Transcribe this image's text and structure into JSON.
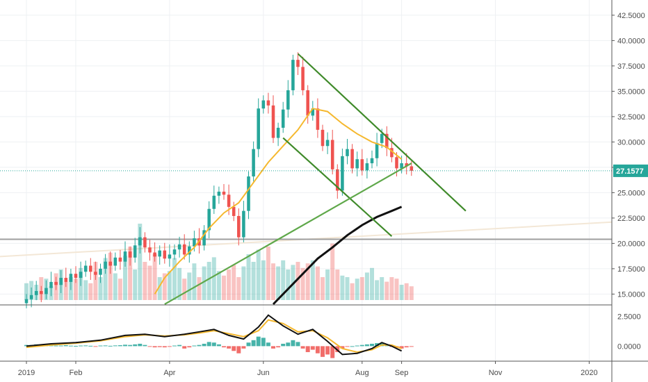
{
  "chart_data": {
    "type": "candlestick",
    "title": "",
    "grid": true,
    "price_axis": {
      "ylim": [
        14.0,
        44.0
      ],
      "ticks": [
        15.0,
        17.5,
        20.0,
        22.5,
        25.0,
        27.5,
        30.0,
        32.5,
        35.0,
        37.5,
        40.0,
        42.5
      ],
      "tick_labels": [
        "15.0000",
        "17.5000",
        "20.0000",
        "22.5000",
        "25.0000",
        "27.5000",
        "30.0000",
        "32.5000",
        "35.0000",
        "37.5000",
        "40.0000",
        "42.5000"
      ],
      "current_price": 27.1577,
      "current_price_label": "27.1577"
    },
    "time_axis": {
      "tick_labels": [
        "2019",
        "Feb",
        "Apr",
        "Jun",
        "Aug",
        "Sep",
        "Nov",
        "2020"
      ],
      "tick_weeks": [
        0,
        10,
        29,
        48,
        68,
        76,
        95,
        114
      ]
    },
    "weeks": 79,
    "close": [
      14.5,
      14.9,
      15.3,
      15.0,
      15.6,
      16.2,
      15.9,
      16.6,
      16.2,
      17.0,
      16.6,
      17.2,
      17.8,
      17.2,
      16.9,
      17.5,
      18.2,
      17.8,
      18.6,
      18.2,
      19.2,
      18.6,
      19.8,
      20.6,
      19.6,
      19.1,
      18.7,
      19.3,
      18.5,
      18.9,
      19.4,
      19.9,
      18.9,
      19.7,
      20.5,
      19.8,
      21.3,
      23.4,
      24.7,
      25.1,
      24.8,
      23.6,
      22.7,
      20.6,
      23.2,
      26.6,
      29.3,
      33.3,
      34.1,
      33.6,
      30.4,
      31.4,
      33.2,
      35.1,
      38.1,
      37.4,
      35.1,
      32.6,
      33.3,
      31.2,
      29.6,
      30.2,
      27.3,
      25.2,
      28.6,
      29.3,
      27.4,
      28.3,
      27.2,
      27.9,
      28.4,
      29.9,
      30.8,
      29.4,
      28.5,
      27.4,
      27.9,
      27.6,
      27.16
    ],
    "volume": [
      0.22,
      0.25,
      0.2,
      0.3,
      0.28,
      0.18,
      0.35,
      0.4,
      0.24,
      0.3,
      0.28,
      0.42,
      0.26,
      0.22,
      0.5,
      0.3,
      0.55,
      0.62,
      0.35,
      0.28,
      0.58,
      0.7,
      0.4,
      1.0,
      0.5,
      0.45,
      0.6,
      0.3,
      0.35,
      0.38,
      0.55,
      0.42,
      0.28,
      0.36,
      0.48,
      0.3,
      0.44,
      0.5,
      0.56,
      0.38,
      0.32,
      0.4,
      0.46,
      0.3,
      0.44,
      0.6,
      0.5,
      0.66,
      0.52,
      0.7,
      0.48,
      0.44,
      0.52,
      0.4,
      0.46,
      0.5,
      0.42,
      0.48,
      0.52,
      0.44,
      0.3,
      0.4,
      0.74,
      0.4,
      0.32,
      0.3,
      0.22,
      0.28,
      0.3,
      0.36,
      0.42,
      0.26,
      0.3,
      0.24,
      0.3,
      0.28,
      0.2,
      0.22,
      0.18
    ],
    "sma_orange": [
      [
        26,
        15.0
      ],
      [
        28,
        16.6
      ],
      [
        31,
        18.2
      ],
      [
        34,
        19.6
      ],
      [
        37,
        21.5
      ],
      [
        40,
        23.0
      ],
      [
        43,
        24.0
      ],
      [
        46,
        26.0
      ],
      [
        49,
        28.0
      ],
      [
        52,
        29.6
      ],
      [
        55,
        31.2
      ],
      [
        58,
        33.3
      ],
      [
        61,
        33.0
      ],
      [
        64,
        31.8
      ],
      [
        67,
        30.8
      ],
      [
        70,
        30.0
      ],
      [
        73,
        29.5
      ],
      [
        76,
        28.3
      ]
    ],
    "sma_black": [
      [
        50,
        14.0
      ],
      [
        53,
        15.5
      ],
      [
        56,
        17.0
      ],
      [
        59,
        18.5
      ],
      [
        62,
        19.6
      ],
      [
        65,
        20.8
      ],
      [
        68,
        21.8
      ],
      [
        71,
        22.6
      ],
      [
        74,
        23.2
      ],
      [
        76,
        23.6
      ]
    ],
    "trendlines": [
      {
        "color": "#3f8a2a",
        "from": [
          55,
          38.7
        ],
        "to": [
          89,
          23.2
        ]
      },
      {
        "color": "#3f8a2a",
        "from": [
          52,
          30.4
        ],
        "to": [
          74,
          20.7
        ]
      },
      {
        "color": "#5fa84a",
        "from": [
          28,
          14.0
        ],
        "to": [
          78,
          27.9
        ]
      }
    ],
    "horizontal_lines": [
      {
        "y": 20.4,
        "color": "#9e9e9e"
      }
    ],
    "macd": {
      "ylim": [
        -1.2,
        3.4
      ],
      "ticks": [
        0.0,
        2.5
      ],
      "tick_labels": [
        "0.0000",
        "2.5000"
      ],
      "macd_line": [
        [
          0,
          0.0
        ],
        [
          5,
          0.2
        ],
        [
          10,
          0.3
        ],
        [
          15,
          0.5
        ],
        [
          20,
          0.9
        ],
        [
          24,
          1.0
        ],
        [
          28,
          0.8
        ],
        [
          32,
          1.0
        ],
        [
          35,
          1.2
        ],
        [
          38,
          1.4
        ],
        [
          41,
          0.9
        ],
        [
          44,
          0.6
        ],
        [
          47,
          1.6
        ],
        [
          49,
          2.6
        ],
        [
          52,
          1.7
        ],
        [
          55,
          1.0
        ],
        [
          58,
          1.4
        ],
        [
          61,
          0.4
        ],
        [
          64,
          -0.7
        ],
        [
          67,
          -0.6
        ],
        [
          70,
          -0.2
        ],
        [
          72,
          0.3
        ],
        [
          74,
          0.0
        ],
        [
          76,
          -0.4
        ]
      ],
      "signal_line": [
        [
          0,
          -0.1
        ],
        [
          5,
          0.1
        ],
        [
          10,
          0.25
        ],
        [
          15,
          0.45
        ],
        [
          20,
          0.8
        ],
        [
          24,
          0.95
        ],
        [
          28,
          0.85
        ],
        [
          32,
          0.95
        ],
        [
          35,
          1.1
        ],
        [
          38,
          1.3
        ],
        [
          41,
          1.05
        ],
        [
          44,
          0.8
        ],
        [
          47,
          1.3
        ],
        [
          49,
          2.2
        ],
        [
          52,
          1.9
        ],
        [
          55,
          1.2
        ],
        [
          58,
          1.3
        ],
        [
          61,
          0.7
        ],
        [
          64,
          -0.2
        ],
        [
          67,
          -0.5
        ],
        [
          70,
          -0.3
        ],
        [
          72,
          0.1
        ],
        [
          74,
          0.1
        ],
        [
          76,
          -0.2
        ]
      ],
      "histogram": [
        0.1,
        0.1,
        0.15,
        0.05,
        0.1,
        0.1,
        0.05,
        0.05,
        0.08,
        0.04,
        0.02,
        0.05,
        0.06,
        0.03,
        -0.03,
        0.05,
        0.06,
        0.03,
        0.06,
        0.08,
        0.12,
        0.1,
        0.15,
        0.2,
        0.1,
        -0.05,
        -0.1,
        -0.08,
        -0.1,
        -0.05,
        0.05,
        0.1,
        -0.2,
        -0.1,
        0.05,
        0.1,
        0.2,
        0.35,
        0.3,
        0.15,
        -0.1,
        -0.2,
        -0.4,
        -0.6,
        -0.2,
        0.3,
        0.5,
        0.8,
        0.7,
        0.3,
        -0.2,
        -0.1,
        0.2,
        0.3,
        0.5,
        0.35,
        -0.2,
        -0.5,
        -0.3,
        -0.6,
        -0.9,
        -0.7,
        -1.0,
        -0.5,
        -0.2,
        -0.05,
        0.0,
        0.05,
        0.1,
        0.15,
        0.2,
        0.25,
        0.3,
        0.15,
        -0.05,
        -0.15,
        -0.2,
        -0.1,
        -0.05
      ]
    },
    "colors": {
      "up": "#26a69a",
      "down": "#ef5350",
      "sma_orange": "#f5b82e",
      "sma_black": "#111111",
      "macd_line": "#111111",
      "signal_line": "#f5b82e",
      "current_price": "#26a69a"
    }
  }
}
